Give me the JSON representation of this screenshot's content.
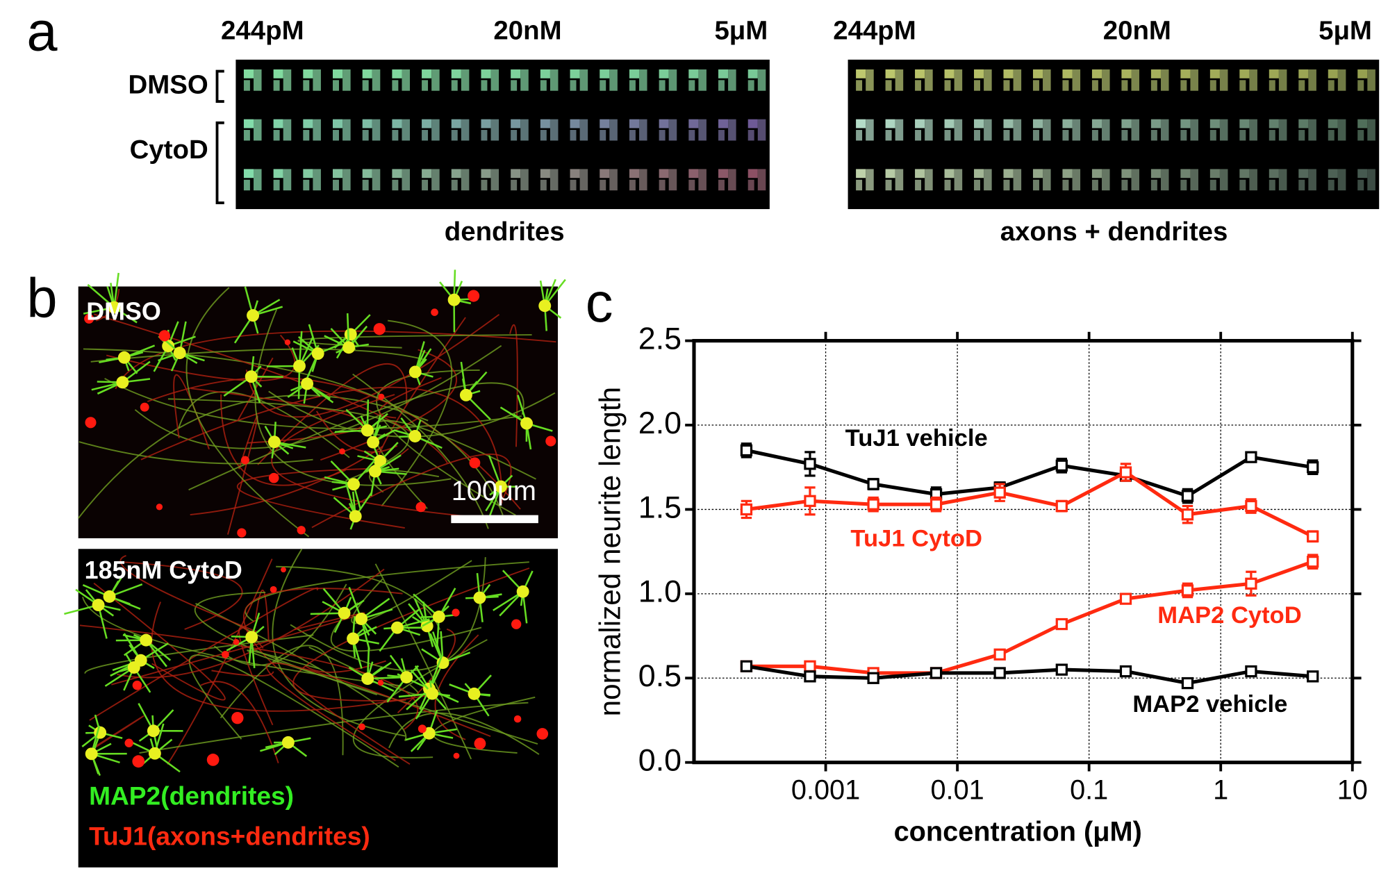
{
  "panel_a": {
    "label": "a",
    "left_headers": [
      "244pM",
      "20nM",
      "5μM"
    ],
    "right_headers": [
      "244pM",
      "20nM",
      "5μM"
    ],
    "rows": [
      "DMSO",
      "CytoD"
    ],
    "left_caption": "dendrites",
    "right_caption": "axons + dendrites"
  },
  "panel_b": {
    "label": "b",
    "top_label": "DMSO",
    "scale_bar": "100μm",
    "bottom_label": "185nM CytoD",
    "legend": [
      "MAP2(dendrites)",
      "TuJ1(axons+dendrites)"
    ]
  },
  "panel_c": {
    "label": "c"
  },
  "chart_data": {
    "type": "line",
    "xlabel": "concentration (μM)",
    "ylabel": "normalized neurite length",
    "xscale": "log",
    "grid": true,
    "x": [
      0.00025,
      0.00076,
      0.0023,
      0.0069,
      0.021,
      0.062,
      0.19,
      0.56,
      1.7,
      5
    ],
    "xlim": [
      0.0001,
      10
    ],
    "xticks": [
      0.001,
      0.01,
      0.1,
      1,
      10
    ],
    "ylim": [
      0,
      2.5
    ],
    "yticks": [
      {
        "value": 0,
        "label": "0.0"
      },
      {
        "value": 0.5,
        "label": "0.5"
      },
      {
        "value": 1,
        "label": "1.0"
      },
      {
        "value": 1.5,
        "label": "1.5"
      },
      {
        "value": 2,
        "label": "2.0"
      },
      2.5
    ],
    "series": [
      {
        "name": "TuJ1 vehicle",
        "color": "#000000",
        "values": [
          1.85,
          1.77,
          1.65,
          1.59,
          1.63,
          1.76,
          1.7,
          1.58,
          1.81,
          1.75
        ],
        "errors": [
          0.04,
          0.07,
          0.03,
          0.04,
          0.03,
          0.04,
          0.03,
          0.04,
          0.02,
          0.04
        ]
      },
      {
        "name": "TuJ1 CytoD",
        "color": "#ff2a10",
        "values": [
          1.5,
          1.55,
          1.53,
          1.53,
          1.6,
          1.52,
          1.72,
          1.47,
          1.52,
          1.34
        ],
        "errors": [
          0.05,
          0.08,
          0.04,
          0.04,
          0.05,
          0.03,
          0.05,
          0.05,
          0.04,
          0.03
        ]
      },
      {
        "name": "MAP2 CytoD",
        "color": "#ff2a10",
        "values": [
          0.57,
          0.57,
          0.53,
          0.53,
          0.64,
          0.82,
          0.97,
          1.02,
          1.06,
          1.19
        ],
        "errors": [
          0.01,
          0.01,
          0.01,
          0.01,
          0.01,
          0.01,
          0.02,
          0.04,
          0.07,
          0.04
        ]
      },
      {
        "name": "MAP2 vehicle",
        "color": "#000000",
        "values": [
          0.57,
          0.51,
          0.5,
          0.53,
          0.53,
          0.55,
          0.54,
          0.47,
          0.54,
          0.51
        ],
        "errors": [
          0.01,
          0.01,
          0.01,
          0.01,
          0.01,
          0.01,
          0.01,
          0.01,
          0.01,
          0.01
        ]
      }
    ]
  }
}
